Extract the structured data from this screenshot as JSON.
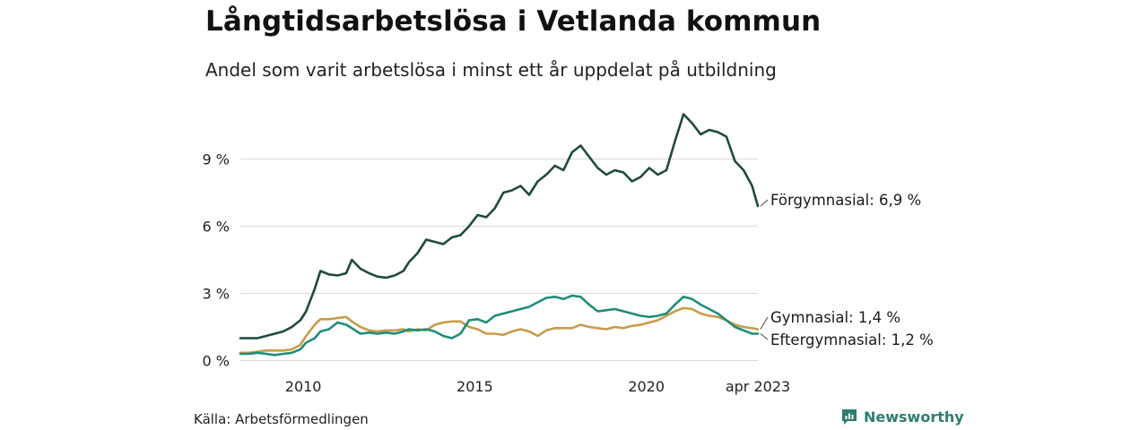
{
  "title": "Långtidsarbetslösa i Vetlanda kommun",
  "subtitle": "Andel som varit arbetslösa i minst ett år uppdelat på utbildning",
  "source": "Källa: Arbetsförmedlingen",
  "brand": "Newsworthy",
  "chart_data": {
    "type": "line",
    "title": "Långtidsarbetslösa i Vetlanda kommun",
    "subtitle": "Andel som varit arbetslösa i minst ett år uppdelat på utbildning",
    "xlabel": "",
    "ylabel": "",
    "x_ticks": [
      "2010",
      "2015",
      "2020",
      "apr 2023"
    ],
    "x_tick_values": [
      "2010-01",
      "2015-01",
      "2020-01",
      "2023-04"
    ],
    "x_range": [
      "2008-03",
      "2023-04"
    ],
    "y_ticks": [
      "0 %",
      "3 %",
      "6 %",
      "9 %"
    ],
    "y_tick_values": [
      0,
      3,
      6,
      9
    ],
    "ylim": [
      0,
      11.3
    ],
    "grid": true,
    "legend": "direct labels at line ends",
    "series": [
      {
        "name": "Förgymnasial",
        "end_label": "Förgymnasial: 6,9 %",
        "color": "#1f4a3c",
        "points": [
          [
            "2008-03",
            1.0
          ],
          [
            "2008-06",
            1.0
          ],
          [
            "2008-09",
            1.0
          ],
          [
            "2008-12",
            1.1
          ],
          [
            "2009-03",
            1.2
          ],
          [
            "2009-06",
            1.3
          ],
          [
            "2009-09",
            1.5
          ],
          [
            "2009-12",
            1.8
          ],
          [
            "2010-02",
            2.2
          ],
          [
            "2010-05",
            3.2
          ],
          [
            "2010-07",
            4.0
          ],
          [
            "2010-10",
            3.85
          ],
          [
            "2011-01",
            3.8
          ],
          [
            "2011-04",
            3.9
          ],
          [
            "2011-06",
            4.5
          ],
          [
            "2011-09",
            4.1
          ],
          [
            "2011-12",
            3.9
          ],
          [
            "2012-03",
            3.75
          ],
          [
            "2012-06",
            3.7
          ],
          [
            "2012-09",
            3.8
          ],
          [
            "2012-12",
            4.0
          ],
          [
            "2013-02",
            4.4
          ],
          [
            "2013-05",
            4.8
          ],
          [
            "2013-08",
            5.4
          ],
          [
            "2013-11",
            5.3
          ],
          [
            "2014-02",
            5.2
          ],
          [
            "2014-05",
            5.5
          ],
          [
            "2014-08",
            5.6
          ],
          [
            "2014-11",
            6.0
          ],
          [
            "2015-02",
            6.5
          ],
          [
            "2015-05",
            6.4
          ],
          [
            "2015-08",
            6.8
          ],
          [
            "2015-11",
            7.5
          ],
          [
            "2016-02",
            7.6
          ],
          [
            "2016-05",
            7.8
          ],
          [
            "2016-08",
            7.4
          ],
          [
            "2016-11",
            8.0
          ],
          [
            "2017-02",
            8.3
          ],
          [
            "2017-05",
            8.7
          ],
          [
            "2017-08",
            8.5
          ],
          [
            "2017-11",
            9.3
          ],
          [
            "2018-02",
            9.6
          ],
          [
            "2018-05",
            9.1
          ],
          [
            "2018-08",
            8.6
          ],
          [
            "2018-11",
            8.3
          ],
          [
            "2019-02",
            8.5
          ],
          [
            "2019-05",
            8.4
          ],
          [
            "2019-08",
            8.0
          ],
          [
            "2019-11",
            8.2
          ],
          [
            "2020-02",
            8.6
          ],
          [
            "2020-05",
            8.3
          ],
          [
            "2020-08",
            8.5
          ],
          [
            "2020-11",
            9.8
          ],
          [
            "2021-02",
            11.0
          ],
          [
            "2021-05",
            10.6
          ],
          [
            "2021-08",
            10.1
          ],
          [
            "2021-11",
            10.3
          ],
          [
            "2022-02",
            10.2
          ],
          [
            "2022-05",
            10.0
          ],
          [
            "2022-08",
            8.9
          ],
          [
            "2022-11",
            8.5
          ],
          [
            "2023-02",
            7.8
          ],
          [
            "2023-04",
            6.9
          ]
        ]
      },
      {
        "name": "Gymnasial",
        "end_label": "Gymnasial: 1,4 %",
        "color": "#c99b49",
        "points": [
          [
            "2008-03",
            0.35
          ],
          [
            "2008-06",
            0.35
          ],
          [
            "2008-09",
            0.4
          ],
          [
            "2008-12",
            0.45
          ],
          [
            "2009-03",
            0.45
          ],
          [
            "2009-06",
            0.45
          ],
          [
            "2009-09",
            0.5
          ],
          [
            "2009-12",
            0.7
          ],
          [
            "2010-02",
            1.1
          ],
          [
            "2010-05",
            1.6
          ],
          [
            "2010-07",
            1.85
          ],
          [
            "2010-10",
            1.85
          ],
          [
            "2011-01",
            1.9
          ],
          [
            "2011-04",
            1.95
          ],
          [
            "2011-06",
            1.75
          ],
          [
            "2011-09",
            1.5
          ],
          [
            "2011-12",
            1.35
          ],
          [
            "2012-03",
            1.3
          ],
          [
            "2012-06",
            1.35
          ],
          [
            "2012-09",
            1.35
          ],
          [
            "2012-12",
            1.4
          ],
          [
            "2013-02",
            1.3
          ],
          [
            "2013-05",
            1.4
          ],
          [
            "2013-08",
            1.35
          ],
          [
            "2013-11",
            1.6
          ],
          [
            "2014-02",
            1.7
          ],
          [
            "2014-05",
            1.75
          ],
          [
            "2014-08",
            1.75
          ],
          [
            "2014-11",
            1.5
          ],
          [
            "2015-02",
            1.4
          ],
          [
            "2015-05",
            1.2
          ],
          [
            "2015-08",
            1.2
          ],
          [
            "2015-11",
            1.15
          ],
          [
            "2016-02",
            1.3
          ],
          [
            "2016-05",
            1.4
          ],
          [
            "2016-08",
            1.3
          ],
          [
            "2016-11",
            1.1
          ],
          [
            "2017-02",
            1.35
          ],
          [
            "2017-05",
            1.45
          ],
          [
            "2017-08",
            1.45
          ],
          [
            "2017-11",
            1.45
          ],
          [
            "2018-02",
            1.6
          ],
          [
            "2018-05",
            1.5
          ],
          [
            "2018-08",
            1.45
          ],
          [
            "2018-11",
            1.4
          ],
          [
            "2019-02",
            1.5
          ],
          [
            "2019-05",
            1.45
          ],
          [
            "2019-08",
            1.55
          ],
          [
            "2019-11",
            1.6
          ],
          [
            "2020-02",
            1.7
          ],
          [
            "2020-05",
            1.8
          ],
          [
            "2020-08",
            2.0
          ],
          [
            "2020-11",
            2.2
          ],
          [
            "2021-02",
            2.35
          ],
          [
            "2021-05",
            2.3
          ],
          [
            "2021-08",
            2.1
          ],
          [
            "2021-11",
            2.0
          ],
          [
            "2022-02",
            1.95
          ],
          [
            "2022-05",
            1.8
          ],
          [
            "2022-08",
            1.6
          ],
          [
            "2022-11",
            1.5
          ],
          [
            "2023-02",
            1.45
          ],
          [
            "2023-04",
            1.4
          ]
        ]
      },
      {
        "name": "Eftergymnasial",
        "end_label": "Eftergymnasial: 1,2 %",
        "color": "#1f8c7a",
        "points": [
          [
            "2008-03",
            0.3
          ],
          [
            "2008-06",
            0.3
          ],
          [
            "2008-09",
            0.35
          ],
          [
            "2008-12",
            0.3
          ],
          [
            "2009-03",
            0.25
          ],
          [
            "2009-06",
            0.3
          ],
          [
            "2009-09",
            0.35
          ],
          [
            "2009-12",
            0.5
          ],
          [
            "2010-02",
            0.8
          ],
          [
            "2010-05",
            1.0
          ],
          [
            "2010-07",
            1.3
          ],
          [
            "2010-10",
            1.4
          ],
          [
            "2011-01",
            1.7
          ],
          [
            "2011-04",
            1.6
          ],
          [
            "2011-06",
            1.45
          ],
          [
            "2011-09",
            1.2
          ],
          [
            "2011-12",
            1.25
          ],
          [
            "2012-03",
            1.2
          ],
          [
            "2012-06",
            1.25
          ],
          [
            "2012-09",
            1.2
          ],
          [
            "2012-12",
            1.3
          ],
          [
            "2013-02",
            1.4
          ],
          [
            "2013-05",
            1.35
          ],
          [
            "2013-08",
            1.4
          ],
          [
            "2013-11",
            1.3
          ],
          [
            "2014-02",
            1.1
          ],
          [
            "2014-05",
            1.0
          ],
          [
            "2014-08",
            1.2
          ],
          [
            "2014-11",
            1.8
          ],
          [
            "2015-02",
            1.85
          ],
          [
            "2015-05",
            1.7
          ],
          [
            "2015-08",
            2.0
          ],
          [
            "2015-11",
            2.1
          ],
          [
            "2016-02",
            2.2
          ],
          [
            "2016-05",
            2.3
          ],
          [
            "2016-08",
            2.4
          ],
          [
            "2016-11",
            2.6
          ],
          [
            "2017-02",
            2.8
          ],
          [
            "2017-05",
            2.85
          ],
          [
            "2017-08",
            2.75
          ],
          [
            "2017-11",
            2.9
          ],
          [
            "2018-02",
            2.85
          ],
          [
            "2018-05",
            2.5
          ],
          [
            "2018-08",
            2.2
          ],
          [
            "2018-11",
            2.25
          ],
          [
            "2019-02",
            2.3
          ],
          [
            "2019-05",
            2.2
          ],
          [
            "2019-08",
            2.1
          ],
          [
            "2019-11",
            2.0
          ],
          [
            "2020-02",
            1.95
          ],
          [
            "2020-05",
            2.0
          ],
          [
            "2020-08",
            2.1
          ],
          [
            "2020-11",
            2.5
          ],
          [
            "2021-02",
            2.85
          ],
          [
            "2021-05",
            2.75
          ],
          [
            "2021-08",
            2.5
          ],
          [
            "2021-11",
            2.3
          ],
          [
            "2022-02",
            2.1
          ],
          [
            "2022-05",
            1.8
          ],
          [
            "2022-08",
            1.5
          ],
          [
            "2022-11",
            1.35
          ],
          [
            "2023-02",
            1.2
          ],
          [
            "2023-04",
            1.2
          ]
        ]
      }
    ]
  }
}
